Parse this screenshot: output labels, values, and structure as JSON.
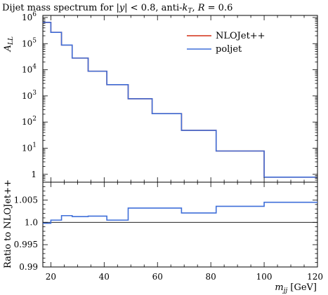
{
  "chart_data": [
    {
      "type": "line",
      "step": true,
      "title": "Dijet mass spectrum for |y| < 0.8, anti-kT, R = 0.6",
      "title_parts": {
        "pre": "Dijet mass spectrum for ",
        "y": "|y|",
        "mid": " < 0.8, anti-",
        "k": "k",
        "T": "T",
        "post": ", R = 0.6"
      },
      "ylabel": "A_LL",
      "ylabel_parts": {
        "main": "A",
        "sub": "LL"
      },
      "yscale": "log",
      "ylim": [
        0.5,
        1200000
      ],
      "xlim": [
        17,
        120
      ],
      "yticks": [
        {
          "value": 1,
          "label": "1",
          "base": "1",
          "exp": ""
        },
        {
          "value": 10,
          "label": "10",
          "base": "10",
          "exp": "1"
        },
        {
          "value": 100,
          "label": "10^2",
          "base": "10",
          "exp": "2"
        },
        {
          "value": 1000,
          "label": "10^3",
          "base": "10",
          "exp": "3"
        },
        {
          "value": 10000,
          "label": "10^4",
          "base": "10",
          "exp": "4"
        },
        {
          "value": 100000,
          "label": "10^5",
          "base": "10",
          "exp": "5"
        },
        {
          "value": 1000000,
          "label": "10^6",
          "base": "10",
          "exp": "6"
        }
      ],
      "legend": {
        "placement": "top-right"
      },
      "bin_edges": [
        17,
        20,
        24,
        28,
        34,
        41,
        49,
        58,
        69,
        82,
        100,
        120
      ],
      "series": [
        {
          "name": "NLOJet++",
          "color": "#d42d13",
          "values": [
            650000,
            270000,
            88000,
            28000,
            8800,
            2700,
            780,
            210,
            48,
            7.8,
            0.78
          ]
        },
        {
          "name": "poljet",
          "color": "#3f6fd9",
          "values": [
            650000,
            270000,
            88000,
            28000,
            8800,
            2700,
            780,
            210,
            48,
            7.8,
            0.78
          ]
        }
      ]
    },
    {
      "type": "line",
      "step": true,
      "ylabel": "Ratio to NLOJet++",
      "xlabel": "m_jj [GeV]",
      "xlabel_parts": {
        "main": "m",
        "sub": "jj",
        "unit": " [GeV]"
      },
      "ylim": [
        0.99,
        1.009
      ],
      "xlim": [
        17,
        120
      ],
      "yticks": [
        {
          "value": 0.99,
          "label": "0.99"
        },
        {
          "value": 0.995,
          "label": "0.995"
        },
        {
          "value": 1.0,
          "label": "1.0"
        },
        {
          "value": 1.005,
          "label": "1.005"
        }
      ],
      "xticks": [
        {
          "value": 20,
          "label": "20"
        },
        {
          "value": 40,
          "label": "40"
        },
        {
          "value": 60,
          "label": "60"
        },
        {
          "value": 80,
          "label": "80"
        },
        {
          "value": 100,
          "label": "100"
        },
        {
          "value": 120,
          "label": "120"
        }
      ],
      "reference_line": 1.0,
      "bin_edges": [
        17,
        20,
        24,
        28,
        34,
        41,
        49,
        58,
        69,
        82,
        100,
        120
      ],
      "series": [
        {
          "name": "poljet",
          "color": "#3f6fd9",
          "values": [
            0.9998,
            1.0005,
            1.0015,
            1.0013,
            1.0014,
            1.0005,
            1.0032,
            1.0032,
            1.0021,
            1.0036,
            1.0045
          ]
        }
      ]
    }
  ]
}
